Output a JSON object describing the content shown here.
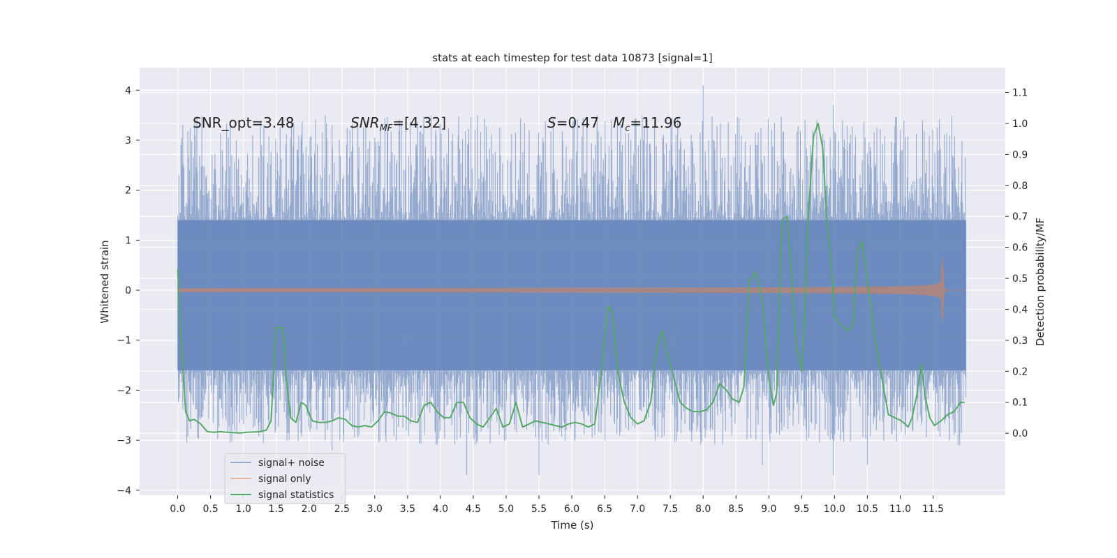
{
  "chart_data": {
    "type": "line",
    "title": "stats at each timestep for test data 10873 [signal=1]",
    "xlabel": "Time (s)",
    "ylabel": "Whitened strain",
    "ylabel_right": "Detection probability/MF",
    "xlim": [
      -0.58,
      12.6
    ],
    "ylim": [
      -4.1,
      4.45
    ],
    "ylim_right": [
      -0.2,
      1.18
    ],
    "x_ticks": [
      0.0,
      0.5,
      1.0,
      1.5,
      2.0,
      2.5,
      3.0,
      3.5,
      4.0,
      4.5,
      5.0,
      5.5,
      6.0,
      6.5,
      7.0,
      7.5,
      8.0,
      8.5,
      9.0,
      9.5,
      10.0,
      10.5,
      11.0,
      11.5
    ],
    "x_tick_labels": [
      "0.0",
      "0.5",
      "1.0",
      "1.5",
      "2.0",
      "2.5",
      "3.0",
      "3.5",
      "4.0",
      "4.5",
      "5.0",
      "5.5",
      "6.0",
      "6.5",
      "7.0",
      "7.5",
      "8.0",
      "8.5",
      "9.0",
      "9.5",
      "10.0",
      "10.5",
      "11.0",
      "11.5"
    ],
    "y_ticks": [
      4,
      3,
      2,
      1,
      0,
      -1,
      -2,
      -3,
      -4
    ],
    "y_tick_labels": [
      "4",
      "3",
      "2",
      "1",
      "0",
      "−1",
      "−2",
      "−3",
      "−4"
    ],
    "y_right_ticks": [
      1.1,
      1.0,
      0.9,
      0.8,
      0.7,
      0.6,
      0.5,
      0.4,
      0.3,
      0.2,
      0.1,
      0.0
    ],
    "y_right_tick_labels": [
      "1.1",
      "1.0",
      "0.9",
      "0.8",
      "0.7",
      "0.6",
      "0.5",
      "0.4",
      "0.3",
      "0.2",
      "0.1",
      "0.0"
    ],
    "grid": true,
    "legend_position": "lower-left",
    "annotations": {
      "snr_opt": "SNR_opt=3.48",
      "snr_mf_main": "SNR",
      "snr_mf_sub": "MF",
      "snr_mf_rest": "=[4.32]",
      "s_var": "S",
      "s_rest": "=0.47",
      "mc_var": "M",
      "mc_sub": "c",
      "mc_rest": "=11.96"
    },
    "series": [
      {
        "name": "signal+ noise",
        "color": "#4c72b0",
        "axis": "left",
        "x_range": [
          0.0,
          12.0
        ],
        "envelope": {
          "upper_typical": 1.4,
          "lower_typical": -1.6,
          "upper_peak": 4.1,
          "lower_peak": -3.7
        },
        "notable_peaks": [
          [
            0.05,
            2.9
          ],
          [
            0.8,
            3.3
          ],
          [
            2.35,
            3.3
          ],
          [
            5.35,
            3.2
          ],
          [
            8.0,
            4.1
          ],
          [
            9.55,
            3.4
          ],
          [
            9.98,
            3.7
          ],
          [
            11.0,
            3.2
          ],
          [
            0.3,
            -2.95
          ],
          [
            2.35,
            -3.2
          ],
          [
            4.4,
            -3.7
          ],
          [
            5.5,
            -3.7
          ],
          [
            8.9,
            -3.5
          ],
          [
            9.98,
            -3.7
          ],
          [
            10.5,
            -3.5
          ],
          [
            11.75,
            -3.0
          ]
        ]
      },
      {
        "name": "signal only",
        "color": "#dd8452",
        "axis": "left",
        "x_range": [
          0.0,
          12.0
        ],
        "chirp": {
          "t_merge": 11.65,
          "peak_amplitude": 0.68,
          "ringdown_end": 11.68
        }
      },
      {
        "name": "signal statistics",
        "color": "#55a868",
        "axis": "right",
        "x": [
          0.0,
          0.05,
          0.12,
          0.18,
          0.25,
          0.35,
          0.45,
          0.55,
          0.65,
          0.75,
          0.85,
          0.95,
          1.05,
          1.15,
          1.25,
          1.35,
          1.42,
          1.5,
          1.6,
          1.65,
          1.72,
          1.8,
          1.88,
          1.95,
          2.05,
          2.15,
          2.25,
          2.35,
          2.45,
          2.55,
          2.65,
          2.75,
          2.85,
          2.95,
          3.05,
          3.15,
          3.25,
          3.35,
          3.45,
          3.55,
          3.65,
          3.75,
          3.85,
          3.95,
          4.05,
          4.15,
          4.25,
          4.35,
          4.45,
          4.55,
          4.65,
          4.75,
          4.85,
          4.95,
          5.05,
          5.15,
          5.25,
          5.35,
          5.45,
          5.55,
          5.65,
          5.75,
          5.85,
          5.95,
          6.05,
          6.15,
          6.25,
          6.35,
          6.45,
          6.55,
          6.62,
          6.7,
          6.8,
          6.9,
          7.0,
          7.1,
          7.2,
          7.3,
          7.38,
          7.45,
          7.55,
          7.65,
          7.75,
          7.85,
          7.95,
          8.05,
          8.15,
          8.25,
          8.35,
          8.45,
          8.55,
          8.62,
          8.7,
          8.8,
          8.9,
          9.0,
          9.07,
          9.12,
          9.2,
          9.28,
          9.35,
          9.42,
          9.5,
          9.55,
          9.6,
          9.68,
          9.75,
          9.82,
          9.88,
          9.95,
          10.0,
          10.05,
          10.1,
          10.2,
          10.28,
          10.35,
          10.42,
          10.52,
          10.62,
          10.72,
          10.82,
          10.92,
          11.02,
          11.12,
          11.18,
          11.25,
          11.32,
          11.38,
          11.45,
          11.52,
          11.62,
          11.72,
          11.82,
          11.92,
          11.98
        ],
        "values": [
          0.53,
          0.3,
          0.07,
          0.04,
          0.045,
          0.03,
          0.005,
          0.003,
          0.005,
          0.003,
          0.002,
          0.001,
          0.003,
          0.004,
          0.005,
          0.01,
          0.04,
          0.34,
          0.34,
          0.18,
          0.05,
          0.035,
          0.1,
          0.09,
          0.04,
          0.035,
          0.035,
          0.04,
          0.05,
          0.045,
          0.025,
          0.02,
          0.025,
          0.02,
          0.04,
          0.07,
          0.065,
          0.055,
          0.055,
          0.04,
          0.035,
          0.09,
          0.1,
          0.07,
          0.05,
          0.05,
          0.1,
          0.1,
          0.05,
          0.03,
          0.02,
          0.05,
          0.08,
          0.02,
          0.03,
          0.1,
          0.02,
          0.03,
          0.04,
          0.035,
          0.03,
          0.025,
          0.02,
          0.03,
          0.035,
          0.03,
          0.02,
          0.03,
          0.2,
          0.41,
          0.39,
          0.2,
          0.1,
          0.05,
          0.03,
          0.04,
          0.1,
          0.28,
          0.33,
          0.26,
          0.18,
          0.1,
          0.08,
          0.07,
          0.07,
          0.075,
          0.1,
          0.16,
          0.14,
          0.11,
          0.1,
          0.15,
          0.49,
          0.52,
          0.43,
          0.18,
          0.09,
          0.13,
          0.69,
          0.7,
          0.5,
          0.28,
          0.2,
          0.4,
          0.7,
          0.96,
          1.0,
          0.92,
          0.7,
          0.55,
          0.38,
          0.36,
          0.35,
          0.33,
          0.35,
          0.58,
          0.62,
          0.46,
          0.3,
          0.18,
          0.06,
          0.05,
          0.04,
          0.02,
          0.05,
          0.12,
          0.22,
          0.12,
          0.05,
          0.025,
          0.04,
          0.06,
          0.07,
          0.1,
          0.1
        ]
      }
    ]
  }
}
